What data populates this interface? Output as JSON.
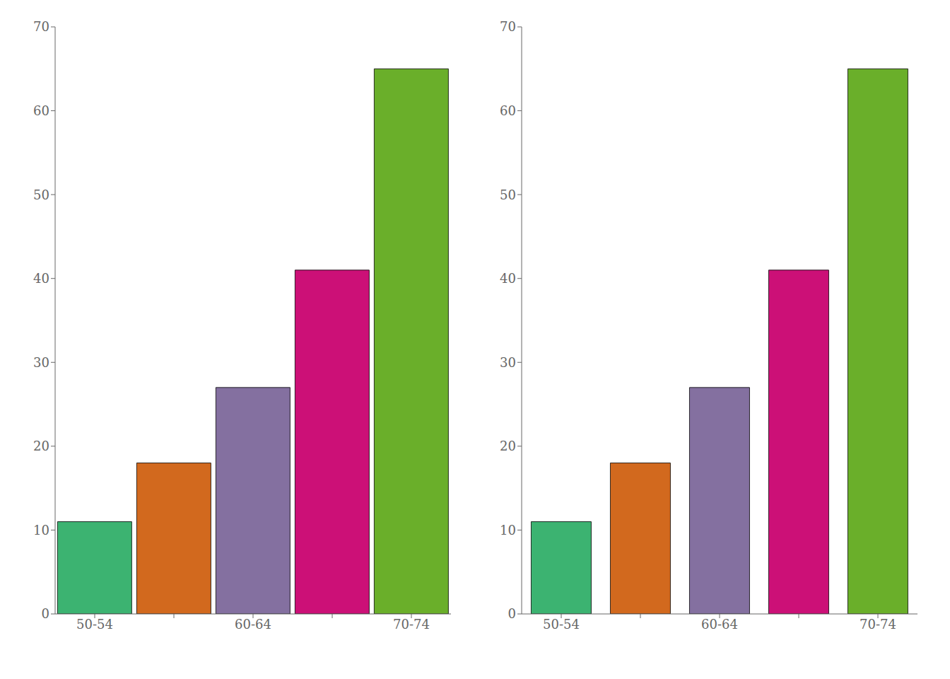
{
  "chart_data": [
    {
      "type": "bar",
      "categories": [
        "50-54",
        null,
        "60-64",
        null,
        "70-74"
      ],
      "values": [
        11,
        18,
        27,
        41,
        65
      ],
      "colors": [
        "#3CB371",
        "#D2691E",
        "#8470A0",
        "#CC1077",
        "#6AAF2A"
      ],
      "ylim": [
        0,
        70
      ],
      "yticks": [
        0,
        10,
        20,
        30,
        40,
        50,
        60,
        70
      ],
      "grid": false
    },
    {
      "type": "bar",
      "categories": [
        "50-54",
        null,
        "60-64",
        null,
        "70-74"
      ],
      "values": [
        11,
        18,
        27,
        41,
        65
      ],
      "colors": [
        "#3CB371",
        "#D2691E",
        "#8470A0",
        "#CC1077",
        "#6AAF2A"
      ],
      "ylim": [
        0,
        70
      ],
      "yticks": [
        0,
        10,
        20,
        30,
        40,
        50,
        60,
        70
      ],
      "grid": false
    }
  ]
}
